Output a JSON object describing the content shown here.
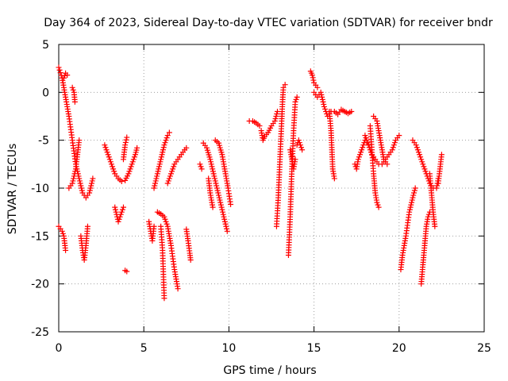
{
  "chart_data": {
    "type": "scatter",
    "title": "Day 364 of 2023, Sidereal Day-to-day VTEC variation (SDTVAR) for receiver bndr",
    "xlabel": "GPS time / hours",
    "ylabel": "SDTVAR / TECUs",
    "xlim": [
      0,
      25
    ],
    "ylim": [
      -25,
      5
    ],
    "xticks": [
      0,
      5,
      10,
      15,
      20,
      25
    ],
    "yticks": [
      5,
      0,
      -5,
      -10,
      -15,
      -20,
      -25
    ],
    "grid": true,
    "marker": "+",
    "color": "#ff0000",
    "series": [
      {
        "name": "SDTVAR",
        "segments": [
          [
            [
              0.0,
              2.6
            ],
            [
              0.2,
              1.5
            ],
            [
              0.4,
              -0.5
            ],
            [
              0.6,
              -2.5
            ],
            [
              0.8,
              -5
            ],
            [
              1.0,
              -7.5
            ],
            [
              1.2,
              -9
            ],
            [
              1.4,
              -10.5
            ],
            [
              1.6,
              -11
            ],
            [
              1.8,
              -10.5
            ],
            [
              2.0,
              -9
            ]
          ],
          [
            [
              0.0,
              -14
            ],
            [
              0.2,
              -14.5
            ],
            [
              0.3,
              -15
            ],
            [
              0.4,
              -16.5
            ]
          ],
          [
            [
              0.3,
              1.5
            ],
            [
              0.4,
              2.0
            ],
            [
              0.5,
              1.8
            ]
          ],
          [
            [
              0.6,
              -10
            ],
            [
              0.8,
              -9.5
            ],
            [
              1.0,
              -8
            ],
            [
              1.1,
              -6.5
            ],
            [
              1.2,
              -5
            ]
          ],
          [
            [
              0.8,
              0.5
            ],
            [
              0.9,
              0
            ],
            [
              0.95,
              -1
            ]
          ],
          [
            [
              1.3,
              -15
            ],
            [
              1.4,
              -16.5
            ],
            [
              1.5,
              -17.5
            ],
            [
              1.6,
              -16
            ],
            [
              1.7,
              -14
            ]
          ],
          [
            [
              2.7,
              -5.5
            ],
            [
              2.9,
              -6.5
            ],
            [
              3.1,
              -7.5
            ],
            [
              3.3,
              -8.5
            ],
            [
              3.5,
              -9
            ],
            [
              3.7,
              -9.3
            ],
            [
              3.9,
              -9.2
            ],
            [
              4.1,
              -8.5
            ],
            [
              4.3,
              -7.5
            ],
            [
              4.5,
              -6.5
            ],
            [
              4.6,
              -5.8
            ]
          ],
          [
            [
              3.3,
              -12
            ],
            [
              3.5,
              -13.5
            ],
            [
              3.7,
              -12.5
            ],
            [
              3.8,
              -12
            ]
          ],
          [
            [
              3.8,
              -7
            ],
            [
              3.9,
              -5.5
            ],
            [
              4.0,
              -4.7
            ]
          ],
          [
            [
              3.9,
              -18.6
            ],
            [
              4.0,
              -18.7
            ]
          ],
          [
            [
              5.3,
              -13.5
            ],
            [
              5.4,
              -14.5
            ],
            [
              5.5,
              -15.5
            ],
            [
              5.6,
              -14
            ]
          ],
          [
            [
              5.6,
              -10
            ],
            [
              5.8,
              -8.5
            ],
            [
              6.0,
              -7
            ],
            [
              6.2,
              -5.5
            ],
            [
              6.4,
              -4.5
            ],
            [
              6.5,
              -4.2
            ]
          ],
          [
            [
              5.8,
              -12.5
            ],
            [
              6.0,
              -12.7
            ],
            [
              6.2,
              -13
            ],
            [
              6.4,
              -14
            ],
            [
              6.6,
              -16
            ],
            [
              6.8,
              -18.5
            ],
            [
              7.0,
              -20.5
            ]
          ],
          [
            [
              6.0,
              -14
            ],
            [
              6.1,
              -16.5
            ],
            [
              6.15,
              -19
            ],
            [
              6.2,
              -21.5
            ]
          ],
          [
            [
              6.4,
              -9.5
            ],
            [
              6.6,
              -8.5
            ],
            [
              6.8,
              -7.5
            ],
            [
              7.0,
              -7
            ],
            [
              7.2,
              -6.5
            ],
            [
              7.4,
              -6
            ],
            [
              7.5,
              -5.8
            ]
          ],
          [
            [
              7.5,
              -14.3
            ],
            [
              7.6,
              -15.5
            ],
            [
              7.7,
              -16.8
            ],
            [
              7.75,
              -17.5
            ]
          ],
          [
            [
              8.3,
              -7.5
            ],
            [
              8.4,
              -8
            ]
          ],
          [
            [
              8.5,
              -5.3
            ],
            [
              8.7,
              -5.8
            ],
            [
              8.9,
              -7
            ],
            [
              9.1,
              -8.5
            ],
            [
              9.3,
              -10
            ],
            [
              9.5,
              -11.5
            ],
            [
              9.7,
              -13
            ],
            [
              9.9,
              -14.5
            ]
          ],
          [
            [
              8.8,
              -9
            ],
            [
              8.9,
              -10.5
            ],
            [
              9.0,
              -11.5
            ],
            [
              9.05,
              -12
            ]
          ],
          [
            [
              9.2,
              -5
            ],
            [
              9.4,
              -5.3
            ],
            [
              9.6,
              -6.5
            ],
            [
              9.8,
              -8.5
            ],
            [
              9.95,
              -10
            ],
            [
              10.1,
              -11.7
            ]
          ],
          [
            [
              11.2,
              -3
            ],
            [
              11.4,
              -3
            ],
            [
              11.6,
              -3.2
            ],
            [
              11.8,
              -3.5
            ]
          ],
          [
            [
              11.9,
              -4
            ],
            [
              12.0,
              -5
            ],
            [
              12.1,
              -4.6
            ],
            [
              12.3,
              -4.2
            ],
            [
              12.5,
              -3.5
            ],
            [
              12.7,
              -3
            ],
            [
              12.85,
              -2
            ]
          ],
          [
            [
              12.8,
              -14
            ],
            [
              12.9,
              -11
            ],
            [
              13.0,
              -7
            ],
            [
              13.1,
              -3
            ],
            [
              13.15,
              -1
            ],
            [
              13.2,
              0.5
            ],
            [
              13.3,
              0.8
            ]
          ],
          [
            [
              13.5,
              -17
            ],
            [
              13.6,
              -13
            ],
            [
              13.7,
              -8
            ],
            [
              13.8,
              -4
            ],
            [
              13.9,
              -1
            ],
            [
              14.0,
              -0.5
            ]
          ],
          [
            [
              13.6,
              -6
            ],
            [
              13.7,
              -7
            ],
            [
              13.8,
              -8
            ],
            [
              13.9,
              -7
            ]
          ],
          [
            [
              14.0,
              -5.5
            ],
            [
              14.1,
              -5
            ],
            [
              14.2,
              -5.5
            ],
            [
              14.3,
              -6
            ]
          ],
          [
            [
              14.8,
              2.2
            ],
            [
              14.9,
              1.8
            ],
            [
              15.0,
              1.0
            ],
            [
              15.2,
              0.5
            ]
          ],
          [
            [
              15.0,
              0
            ],
            [
              15.2,
              -0.5
            ],
            [
              15.4,
              0
            ],
            [
              15.6,
              -1.5
            ],
            [
              15.8,
              -2.5
            ],
            [
              16.0,
              -2
            ]
          ],
          [
            [
              15.9,
              -2
            ],
            [
              16.0,
              -4
            ],
            [
              16.05,
              -6
            ],
            [
              16.1,
              -8
            ],
            [
              16.2,
              -9
            ]
          ],
          [
            [
              16.2,
              -2
            ],
            [
              16.4,
              -2.3
            ],
            [
              16.6,
              -1.8
            ],
            [
              16.8,
              -2
            ],
            [
              17.0,
              -2.2
            ],
            [
              17.2,
              -2
            ]
          ],
          [
            [
              17.4,
              -7.5
            ],
            [
              17.5,
              -8
            ],
            [
              17.6,
              -7
            ],
            [
              17.8,
              -6
            ],
            [
              18.0,
              -5
            ],
            [
              18.2,
              -5.5
            ]
          ],
          [
            [
              18.0,
              -4.5
            ],
            [
              18.2,
              -5.5
            ],
            [
              18.4,
              -6.5
            ],
            [
              18.6,
              -7
            ],
            [
              18.8,
              -7.5
            ],
            [
              19.0,
              -7.5
            ],
            [
              19.2,
              -7
            ],
            [
              19.4,
              -6.5
            ],
            [
              19.6,
              -6
            ],
            [
              19.8,
              -5
            ],
            [
              20.0,
              -4.5
            ]
          ],
          [
            [
              18.3,
              -3.5
            ],
            [
              18.4,
              -6
            ],
            [
              18.5,
              -8.5
            ],
            [
              18.6,
              -10.5
            ],
            [
              18.7,
              -11.5
            ],
            [
              18.8,
              -12
            ]
          ],
          [
            [
              18.5,
              -2.5
            ],
            [
              18.7,
              -3
            ],
            [
              18.9,
              -5
            ],
            [
              19.1,
              -7
            ],
            [
              19.3,
              -7.5
            ]
          ],
          [
            [
              20.1,
              -18.5
            ],
            [
              20.2,
              -17
            ],
            [
              20.4,
              -15
            ],
            [
              20.6,
              -12.5
            ],
            [
              20.8,
              -11
            ],
            [
              20.95,
              -10
            ]
          ],
          [
            [
              20.8,
              -5
            ],
            [
              21.0,
              -5.5
            ],
            [
              21.2,
              -6.5
            ],
            [
              21.4,
              -7.5
            ],
            [
              21.6,
              -8.5
            ],
            [
              21.8,
              -9.5
            ],
            [
              22.0,
              -10
            ],
            [
              22.2,
              -10
            ],
            [
              22.3,
              -9
            ]
          ],
          [
            [
              21.3,
              -20
            ],
            [
              21.4,
              -18
            ],
            [
              21.5,
              -16
            ],
            [
              21.6,
              -14
            ],
            [
              21.7,
              -13
            ],
            [
              21.8,
              -12.5
            ]
          ],
          [
            [
              21.8,
              -8.5
            ],
            [
              21.9,
              -10.5
            ],
            [
              22.0,
              -12.5
            ],
            [
              22.1,
              -14
            ]
          ],
          [
            [
              22.3,
              -9.5
            ],
            [
              22.4,
              -8
            ],
            [
              22.5,
              -6.5
            ]
          ]
        ]
      }
    ]
  }
}
